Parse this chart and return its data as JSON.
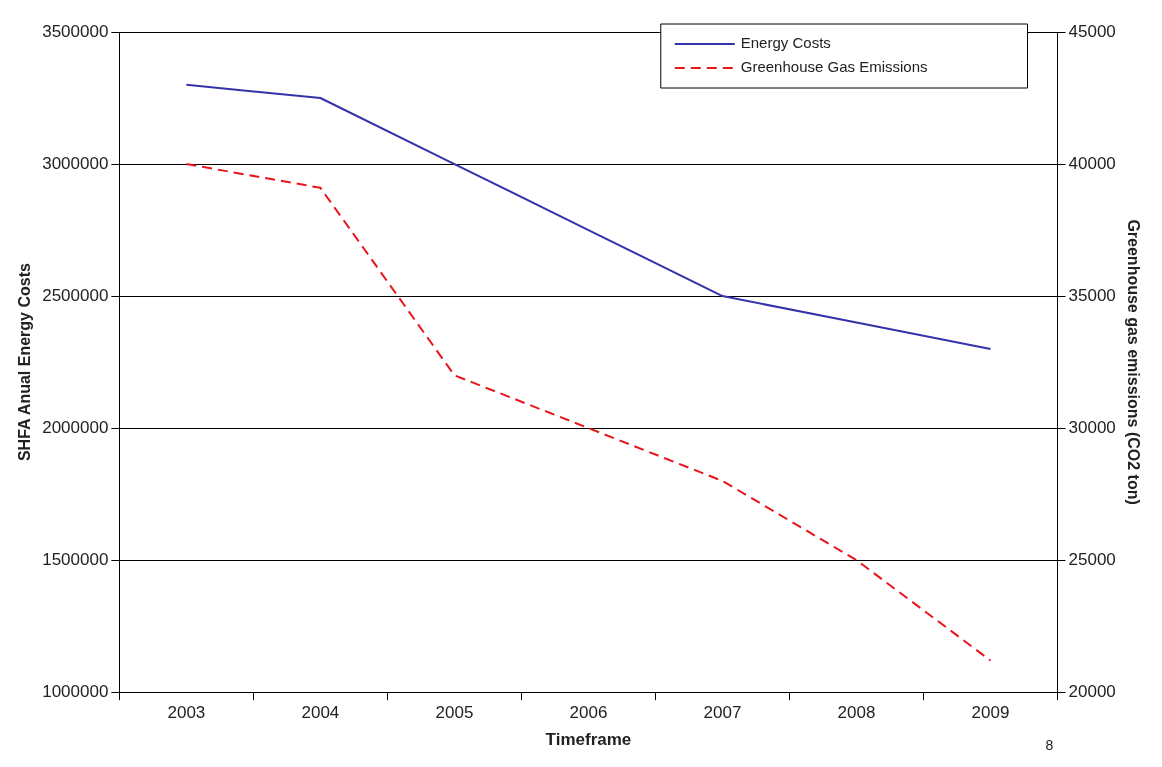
{
  "chart_data": {
    "type": "line",
    "xlabel": "Timeframe",
    "ylabel": "SHFA Anual Energy Costs",
    "y2label": "Greenhouse gas emissions (CO2 ton)",
    "categories": [
      "2003",
      "2004",
      "2005",
      "2006",
      "2007",
      "2008",
      "2009"
    ],
    "series": [
      {
        "name": "Energy Costs",
        "color": "#3333aa",
        "line_style": "solid",
        "values": [
          3300000,
          3250000,
          3000000,
          2750000,
          2500000,
          2400000,
          2300000
        ]
      },
      {
        "name": "Greenhouse Gas Emissions",
        "color": "#e8141c",
        "line_style": "dashed",
        "axis": "y2",
        "values": [
          40000,
          39100,
          32000,
          30000,
          28000,
          25000,
          21200
        ]
      }
    ],
    "ylim": [
      1000000,
      3500000
    ],
    "yticks": [
      1000000,
      1500000,
      2000000,
      2500000,
      3000000,
      3500000
    ],
    "y2lim": [
      20000,
      45000
    ],
    "y2ticks": [
      20000,
      25000,
      30000,
      35000,
      40000,
      45000
    ],
    "grid": "y",
    "legend": "top right",
    "marker": "none",
    "annotations": [
      "8"
    ]
  }
}
